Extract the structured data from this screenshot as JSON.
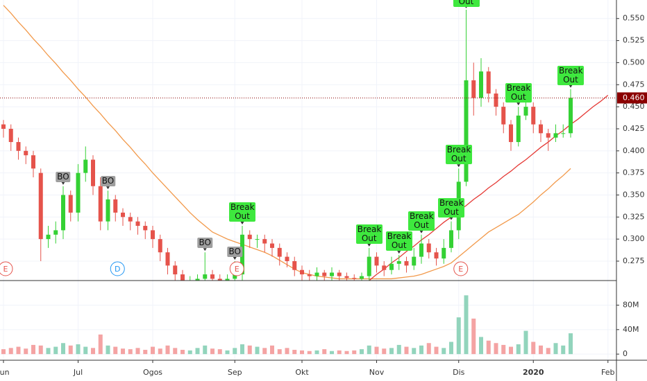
{
  "chart_data": {
    "type": "candlestick",
    "categories": [
      "Jun",
      null,
      null,
      null,
      null,
      null,
      null,
      null,
      null,
      null,
      "Jul",
      null,
      null,
      null,
      null,
      null,
      null,
      null,
      null,
      null,
      "Ogos",
      null,
      null,
      null,
      null,
      null,
      null,
      null,
      null,
      null,
      null,
      "Sep",
      null,
      null,
      null,
      null,
      null,
      null,
      null,
      null,
      "Okt",
      null,
      null,
      null,
      null,
      null,
      null,
      null,
      null,
      null,
      "Nov",
      null,
      null,
      null,
      null,
      null,
      null,
      null,
      null,
      null,
      null,
      "Dis",
      null,
      null,
      null,
      null,
      null,
      null,
      null,
      null,
      null,
      "2020",
      null,
      null,
      null,
      null,
      null,
      null,
      null,
      null,
      null,
      "Feb"
    ],
    "open": [
      0.43,
      0.425,
      0.41,
      0.4,
      0.395,
      0.375,
      0.3,
      0.305,
      0.31,
      0.35,
      0.33,
      0.375,
      0.39,
      0.36,
      0.32,
      0.345,
      0.33,
      0.325,
      0.32,
      0.315,
      0.31,
      0.3,
      0.285,
      0.27,
      0.26,
      0.25,
      0.25,
      0.255,
      0.26,
      0.255,
      0.25,
      0.255,
      0.26,
      0.305,
      0.3,
      0.3,
      0.295,
      0.29,
      0.28,
      0.275,
      0.265,
      0.26,
      0.258,
      0.262,
      0.258,
      0.262,
      0.258,
      0.256,
      0.255,
      0.258,
      0.28,
      0.27,
      0.265,
      0.272,
      0.275,
      0.27,
      0.28,
      0.295,
      0.285,
      0.278,
      0.29,
      0.31,
      0.365,
      0.48,
      0.46,
      0.49,
      0.465,
      0.45,
      0.43,
      0.41,
      0.44,
      0.45,
      0.43,
      0.42,
      0.415,
      0.42,
      0.42,
      null,
      null,
      null,
      null,
      null
    ],
    "high": [
      0.435,
      0.43,
      0.415,
      0.405,
      0.4,
      0.38,
      0.315,
      0.32,
      0.36,
      0.355,
      0.385,
      0.405,
      0.395,
      0.37,
      0.355,
      0.35,
      0.335,
      0.33,
      0.325,
      0.32,
      0.315,
      0.305,
      0.29,
      0.275,
      0.265,
      0.258,
      0.26,
      0.285,
      0.265,
      0.26,
      0.26,
      0.275,
      0.315,
      0.31,
      0.305,
      0.305,
      0.3,
      0.295,
      0.285,
      0.28,
      0.27,
      0.265,
      0.268,
      0.265,
      0.268,
      0.265,
      0.262,
      0.26,
      0.262,
      0.29,
      0.285,
      0.275,
      0.28,
      0.282,
      0.28,
      0.29,
      0.305,
      0.3,
      0.29,
      0.3,
      0.32,
      0.38,
      0.56,
      0.5,
      0.505,
      0.495,
      0.47,
      0.455,
      0.435,
      0.45,
      0.46,
      0.455,
      0.435,
      0.425,
      0.43,
      0.43,
      0.47,
      null,
      null,
      null,
      null,
      null
    ],
    "low": [
      0.415,
      0.4,
      0.39,
      0.385,
      0.37,
      0.275,
      0.29,
      0.295,
      0.3,
      0.32,
      0.32,
      0.365,
      0.35,
      0.31,
      0.31,
      0.32,
      0.315,
      0.31,
      0.305,
      0.3,
      0.29,
      0.275,
      0.26,
      0.25,
      0.24,
      0.24,
      0.245,
      0.248,
      0.248,
      0.243,
      0.245,
      0.25,
      0.252,
      0.29,
      0.29,
      0.285,
      0.28,
      0.27,
      0.268,
      0.258,
      0.252,
      0.25,
      0.252,
      0.25,
      0.252,
      0.25,
      0.248,
      0.248,
      0.25,
      0.252,
      0.262,
      0.258,
      0.26,
      0.265,
      0.262,
      0.265,
      0.272,
      0.278,
      0.27,
      0.272,
      0.285,
      0.3,
      0.36,
      0.44,
      0.45,
      0.455,
      0.44,
      0.42,
      0.4,
      0.405,
      0.435,
      0.42,
      0.41,
      0.4,
      0.41,
      0.415,
      0.415,
      null,
      null,
      null,
      null,
      null
    ],
    "close": [
      0.425,
      0.41,
      0.4,
      0.395,
      0.38,
      0.3,
      0.305,
      0.31,
      0.35,
      0.33,
      0.375,
      0.39,
      0.36,
      0.32,
      0.345,
      0.33,
      0.325,
      0.32,
      0.315,
      0.31,
      0.3,
      0.285,
      0.27,
      0.26,
      0.25,
      0.25,
      0.255,
      0.26,
      0.255,
      0.25,
      0.255,
      0.26,
      0.305,
      0.3,
      0.3,
      0.295,
      0.29,
      0.28,
      0.275,
      0.265,
      0.26,
      0.258,
      0.262,
      0.258,
      0.262,
      0.258,
      0.256,
      0.255,
      0.258,
      0.28,
      0.27,
      0.265,
      0.272,
      0.275,
      0.27,
      0.28,
      0.295,
      0.285,
      0.278,
      0.29,
      0.31,
      0.365,
      0.48,
      0.46,
      0.49,
      0.465,
      0.45,
      0.43,
      0.41,
      0.44,
      0.45,
      0.43,
      0.42,
      0.415,
      0.42,
      0.42,
      0.46,
      null,
      null,
      null,
      null,
      null
    ],
    "volume": [
      8,
      10,
      12,
      9,
      15,
      14,
      10,
      12,
      18,
      14,
      16,
      12,
      10,
      32,
      14,
      12,
      9,
      8,
      10,
      7,
      12,
      9,
      14,
      10,
      7,
      6,
      10,
      14,
      9,
      8,
      6,
      10,
      16,
      14,
      12,
      10,
      14,
      8,
      10,
      7,
      6,
      5,
      6,
      8,
      5,
      6,
      5,
      6,
      8,
      14,
      12,
      9,
      10,
      15,
      12,
      10,
      14,
      18,
      12,
      10,
      20,
      60,
      96,
      58,
      28,
      22,
      18,
      15,
      12,
      16,
      38,
      20,
      14,
      10,
      18,
      14,
      34,
      null,
      null,
      null,
      null,
      null
    ],
    "lines": [
      {
        "color": "#f2994a",
        "values": [
          0.565,
          0.556,
          0.546,
          0.537,
          0.527,
          0.518,
          0.508,
          0.499,
          0.489,
          0.48,
          0.47,
          0.461,
          0.451,
          0.442,
          0.432,
          0.423,
          0.413,
          0.404,
          0.394,
          0.385,
          0.375,
          0.366,
          0.357,
          0.348,
          0.339,
          0.33,
          0.322,
          0.315,
          0.308,
          0.304,
          0.3,
          0.297,
          0.294,
          0.291,
          0.288,
          0.285,
          0.281,
          0.276,
          0.271,
          0.266,
          0.262,
          0.26,
          0.258,
          0.257,
          0.256,
          0.255,
          0.255,
          0.255,
          0.255,
          0.255,
          0.255,
          0.255,
          0.255,
          0.256,
          0.257,
          0.258,
          0.26,
          0.263,
          0.266,
          0.269,
          0.273,
          0.28,
          0.287,
          0.294,
          0.301,
          0.308,
          0.313,
          0.318,
          0.323,
          0.328,
          0.335,
          0.342,
          0.35,
          0.357,
          0.365,
          0.372,
          0.38,
          null,
          null,
          null,
          null,
          null
        ]
      },
      {
        "color": "#e53935",
        "values": [
          null,
          null,
          null,
          null,
          null,
          null,
          null,
          null,
          null,
          null,
          null,
          null,
          null,
          null,
          null,
          null,
          null,
          null,
          null,
          null,
          null,
          null,
          null,
          null,
          null,
          null,
          null,
          null,
          null,
          null,
          null,
          null,
          null,
          null,
          null,
          null,
          null,
          null,
          null,
          null,
          null,
          null,
          null,
          null,
          null,
          null,
          null,
          null,
          null,
          0.253,
          0.26,
          0.266,
          0.273,
          0.279,
          0.286,
          0.292,
          0.299,
          0.305,
          0.312,
          0.319,
          0.325,
          0.332,
          0.338,
          0.345,
          0.351,
          0.358,
          0.364,
          0.371,
          0.377,
          0.384,
          0.39,
          0.397,
          0.404,
          0.41,
          0.417,
          0.423,
          0.43,
          0.436,
          0.443,
          0.45,
          0.456,
          0.463
        ]
      }
    ],
    "signals": [
      null,
      null,
      null,
      null,
      null,
      null,
      null,
      null,
      "BO",
      null,
      null,
      null,
      null,
      null,
      "BO",
      null,
      null,
      null,
      null,
      null,
      null,
      null,
      null,
      null,
      null,
      null,
      null,
      "BO",
      null,
      null,
      null,
      "BO",
      "Break Out",
      null,
      null,
      null,
      null,
      null,
      null,
      null,
      null,
      null,
      null,
      null,
      null,
      null,
      null,
      null,
      null,
      "Break Out",
      null,
      null,
      null,
      "Break Out",
      null,
      null,
      "Break Out",
      null,
      null,
      null,
      "Break Out",
      "Break Out",
      "Break Out",
      null,
      null,
      null,
      null,
      null,
      null,
      "Break Out",
      null,
      null,
      null,
      null,
      null,
      null,
      "Break Out",
      null,
      null,
      null,
      null,
      null
    ],
    "events": [
      "E",
      null,
      null,
      null,
      null,
      null,
      null,
      null,
      null,
      null,
      null,
      null,
      null,
      null,
      null,
      "D",
      null,
      null,
      null,
      null,
      null,
      null,
      null,
      null,
      null,
      null,
      null,
      null,
      null,
      null,
      null,
      "E",
      null,
      null,
      null,
      null,
      null,
      null,
      null,
      null,
      null,
      null,
      null,
      null,
      null,
      null,
      null,
      null,
      null,
      null,
      null,
      null,
      null,
      null,
      null,
      null,
      null,
      null,
      null,
      null,
      null,
      "E",
      null,
      null,
      null,
      null,
      null,
      null,
      null,
      null,
      null,
      null,
      null,
      null,
      null,
      null,
      null,
      null,
      null,
      null,
      null,
      null
    ],
    "event_colors": {
      "E": "#e5534b",
      "D": "#2196f3"
    },
    "up_color": "#34d134",
    "down_color": "#e5534b",
    "volume_up_color": "#92d4bc",
    "volume_down_color": "#f4a3a3",
    "last_price": {
      "value": 0.46,
      "label": "0.460"
    },
    "last_price_color": "#8b0000",
    "ylim": [
      0.253,
      0.571
    ],
    "yticks": [
      {
        "value": 0.275,
        "label": "0.275"
      },
      {
        "value": 0.3,
        "label": "0.300"
      },
      {
        "value": 0.325,
        "label": "0.325"
      },
      {
        "value": 0.35,
        "label": "0.350"
      },
      {
        "value": 0.375,
        "label": "0.375"
      },
      {
        "value": 0.4,
        "label": "0.400"
      },
      {
        "value": 0.425,
        "label": "0.425"
      },
      {
        "value": 0.45,
        "label": "0.450"
      },
      {
        "value": 0.475,
        "label": "0.475"
      },
      {
        "value": 0.5,
        "label": "0.500"
      },
      {
        "value": 0.525,
        "label": "0.525"
      },
      {
        "value": 0.55,
        "label": "0.550"
      }
    ],
    "volume_ylim": [
      -10,
      119
    ],
    "volume_yticks": [
      0,
      {
        "value": 40,
        "label": "40M"
      },
      {
        "value": 80,
        "label": "80M"
      }
    ],
    "grid": true
  }
}
